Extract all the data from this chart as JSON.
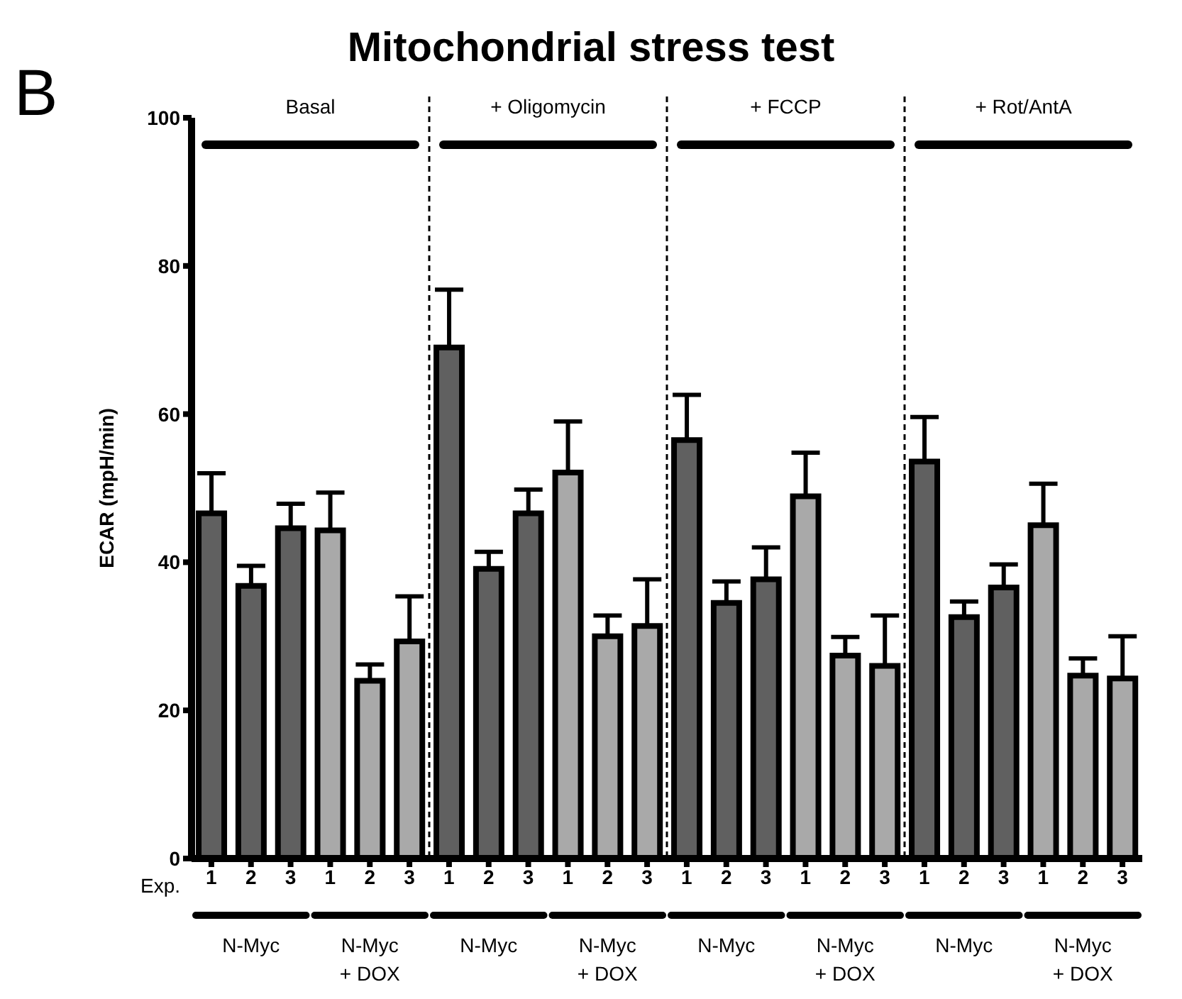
{
  "chart_data": {
    "type": "bar",
    "title": "Mitochondrial stress test",
    "ylabel": "ECAR (mpH/min)",
    "categories": [
      "1",
      "2",
      "3",
      "1",
      "2",
      "3",
      "1",
      "2",
      "3",
      "1",
      "2",
      "3",
      "1",
      "2",
      "3",
      "1",
      "2",
      "3",
      "1",
      "2",
      "3",
      "1",
      "2",
      "3"
    ],
    "values": [
      46.6,
      36.8,
      44.6,
      44.3,
      24.0,
      29.3,
      69.0,
      39.1,
      46.6,
      52.1,
      30.0,
      31.4,
      56.5,
      34.5,
      37.7,
      48.9,
      27.4,
      26.0,
      53.6,
      32.6,
      36.6,
      45.0,
      24.7,
      24.3
    ],
    "errors": [
      [
        46.6,
        52.0
      ],
      [
        36.8,
        39.5
      ],
      [
        44.6,
        47.9
      ],
      [
        44.3,
        49.4
      ],
      [
        24.0,
        26.2
      ],
      [
        29.3,
        35.4
      ],
      [
        69.0,
        76.8
      ],
      [
        39.1,
        41.4
      ],
      [
        46.6,
        49.8
      ],
      [
        52.1,
        59.0
      ],
      [
        30.0,
        32.8
      ],
      [
        31.4,
        37.7
      ],
      [
        56.5,
        62.6
      ],
      [
        34.5,
        37.4
      ],
      [
        37.7,
        42.0
      ],
      [
        48.9,
        54.8
      ],
      [
        27.4,
        29.9
      ],
      [
        26.0,
        32.8
      ],
      [
        53.6,
        59.6
      ],
      [
        32.6,
        34.7
      ],
      [
        36.6,
        39.7
      ],
      [
        45.0,
        50.6
      ],
      [
        24.7,
        27.0
      ],
      [
        24.3,
        30.0
      ]
    ],
    "colors": [
      "#606060",
      "#606060",
      "#606060",
      "#a9a9a9",
      "#a9a9a9",
      "#a9a9a9",
      "#606060",
      "#606060",
      "#606060",
      "#a9a9a9",
      "#a9a9a9",
      "#a9a9a9",
      "#606060",
      "#606060",
      "#606060",
      "#a9a9a9",
      "#a9a9a9",
      "#a9a9a9",
      "#606060",
      "#606060",
      "#606060",
      "#a9a9a9",
      "#a9a9a9",
      "#a9a9a9"
    ],
    "ylim": [
      0,
      100
    ],
    "yticks": [
      0,
      20,
      40,
      60,
      80,
      100
    ],
    "grid": false,
    "legend": false,
    "annotations": [
      "B",
      "Basal",
      "+ Oligomycin",
      "+ FCCP",
      "+ Rot/AntA",
      "Exp.",
      "N-Myc",
      "N-Myc\n+ DOX",
      "N-Myc",
      "N-Myc\n+ DOX",
      "N-Myc",
      "N-Myc\n+ DOX",
      "N-Myc",
      "N-Myc\n+ DOX"
    ]
  }
}
